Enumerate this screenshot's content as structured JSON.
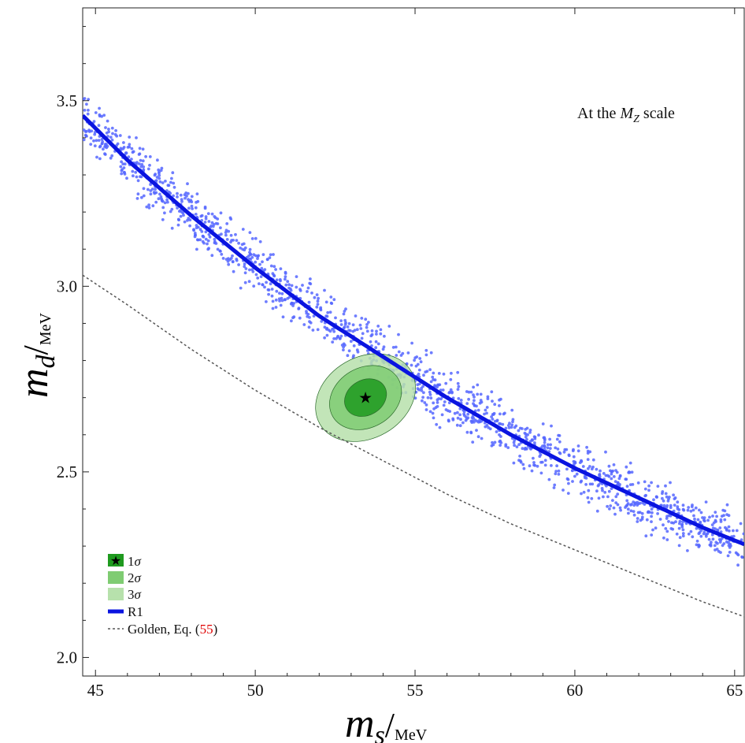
{
  "chart_data": {
    "type": "scatter",
    "annotation": {
      "prefix": "At the ",
      "symbol": "M",
      "subscript": "Z",
      "suffix": " scale"
    },
    "xlabel": {
      "symbol": "m",
      "subscript": "s",
      "unit": "MeV"
    },
    "ylabel": {
      "symbol": "m",
      "subscript": "d",
      "unit": "MeV"
    },
    "xlim": [
      44.6,
      65.3
    ],
    "ylim": [
      1.95,
      3.75
    ],
    "xticks": [
      45,
      50,
      55,
      60,
      65
    ],
    "yticks": [
      2.0,
      2.5,
      3.0,
      3.5
    ],
    "xtick_labels": [
      "45",
      "50",
      "55",
      "60",
      "65"
    ],
    "ytick_labels": [
      "2.0",
      "2.5",
      "3.0",
      "3.5"
    ],
    "grid": false,
    "legend_position": "bottom-left",
    "series": [
      {
        "name": "R1",
        "kind": "curve",
        "color": "#0a14e0",
        "x": [
          44.6,
          46,
          48,
          50,
          52,
          54,
          56,
          58,
          60,
          62,
          64,
          65.3
        ],
        "y": [
          3.46,
          3.34,
          3.19,
          3.05,
          2.92,
          2.81,
          2.7,
          2.6,
          2.51,
          2.43,
          2.35,
          2.305
        ]
      },
      {
        "name": "Golden, Eq. (55)",
        "label_prefix": "Golden, Eq. (",
        "label_ref": "55",
        "label_suffix": ")",
        "ref_color": "#e00000",
        "kind": "dashed-curve",
        "color": "#555555",
        "x": [
          44.6,
          46,
          48,
          50,
          52,
          54,
          56,
          58,
          60,
          62,
          64,
          65.3
        ],
        "y": [
          3.03,
          2.95,
          2.83,
          2.72,
          2.62,
          2.53,
          2.44,
          2.36,
          2.29,
          2.22,
          2.15,
          2.11
        ]
      },
      {
        "name": "scatter points",
        "kind": "scatter-band",
        "color": "#5566ff",
        "x_range": [
          44.6,
          65.3
        ],
        "band_halfwidth": 0.09
      }
    ],
    "confidence_regions": [
      {
        "name": "1σ",
        "symbol": "1",
        "sigma": "σ",
        "color": "#1f9a1f",
        "center": [
          53.45,
          2.7
        ],
        "semi_major": 1.25,
        "semi_minor": 0.05
      },
      {
        "name": "2σ",
        "symbol": "2",
        "sigma": "σ",
        "color": "#7fcc72",
        "center": [
          53.45,
          2.7
        ],
        "semi_major": 2.15,
        "semi_minor": 0.085
      },
      {
        "name": "3σ",
        "symbol": "3",
        "sigma": "σ",
        "color": "#b7e1ac",
        "center": [
          53.45,
          2.7
        ],
        "semi_major": 3.0,
        "semi_minor": 0.115
      }
    ],
    "best_fit": {
      "marker": "star",
      "x": 53.45,
      "y": 2.7,
      "color": "#000000"
    },
    "ellipse_angle_deg": -30
  }
}
